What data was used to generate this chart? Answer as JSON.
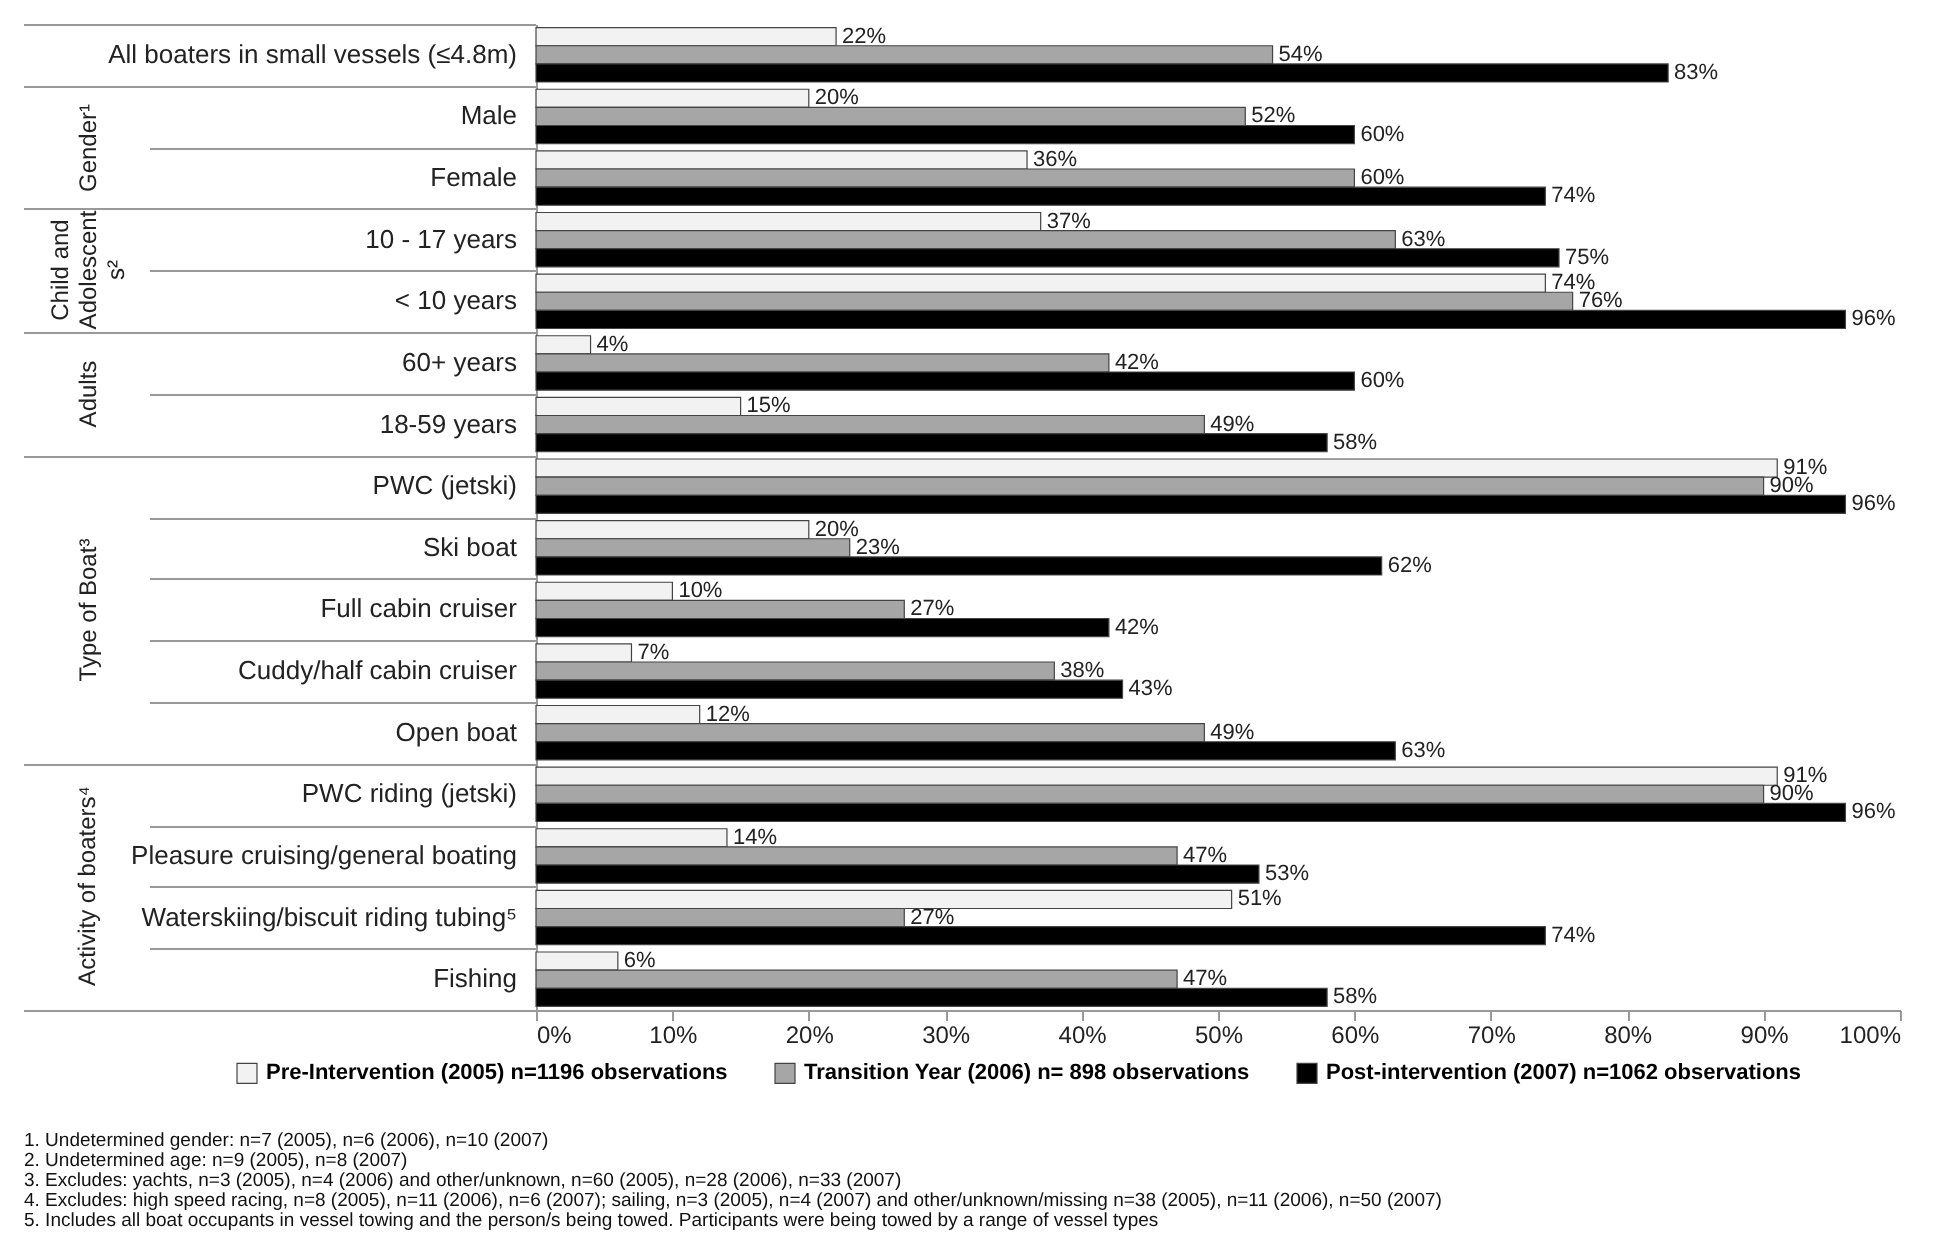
{
  "chart_data": {
    "type": "bar",
    "orientation": "horizontal",
    "categories": [
      "All boaters in small vessels (≤4.8m)",
      "Male",
      "Female",
      "10 - 17 years",
      "< 10 years",
      "60+ years",
      "18-59 years",
      "PWC (jetski)",
      "Ski boat",
      "Full cabin cruiser",
      "Cuddy/half cabin cruiser",
      "Open boat",
      "PWC riding (jetski)",
      "Pleasure cruising/general boating",
      "Waterskiing/biscuit riding tubing⁵",
      "Fishing"
    ],
    "series": [
      {
        "name": "Pre-Intervention (2005) n=1196 observations",
        "color": "#f2f2f2",
        "values": [
          22,
          20,
          36,
          37,
          74,
          4,
          15,
          91,
          20,
          10,
          7,
          12,
          91,
          14,
          51,
          6
        ],
        "value_labels": [
          "22%",
          "20%",
          "36%",
          "37%",
          "74%",
          "4%",
          "15%",
          "91%",
          "20%",
          "10%",
          "7%",
          "12%",
          "91%",
          "14%",
          "51%",
          "6%"
        ]
      },
      {
        "name": "Transition Year (2006) n= 898 observations",
        "color": "#a6a6a6",
        "values": [
          54,
          52,
          60,
          63,
          76,
          42,
          49,
          90,
          23,
          27,
          38,
          49,
          90,
          47,
          27,
          47
        ],
        "value_labels": [
          "54%",
          "52%",
          "60%",
          "63%",
          "76%",
          "42%",
          "49%",
          "90%",
          "23%",
          "27%",
          "38%",
          "49%",
          "90%",
          "47%",
          "27%",
          "47%"
        ]
      },
      {
        "name": "Post-intervention (2007) n=1062 observations",
        "color": "#000000",
        "values": [
          83,
          60,
          74,
          75,
          96,
          60,
          58,
          96,
          62,
          42,
          43,
          63,
          96,
          53,
          74,
          58
        ],
        "value_labels": [
          "83%",
          "60%",
          "74%",
          "75%",
          "96%",
          "60%",
          "58%",
          "96%",
          "62%",
          "42%",
          "43%",
          "63%",
          "96%",
          "53%",
          "74%",
          "58%"
        ]
      }
    ],
    "xlim": [
      0,
      100
    ],
    "xticks": [
      {
        "value": 0,
        "label": "0%"
      },
      {
        "value": 10,
        "label": "10%"
      },
      {
        "value": 20,
        "label": "20%"
      },
      {
        "value": 30,
        "label": "30%"
      },
      {
        "value": 40,
        "label": "40%"
      },
      {
        "value": 50,
        "label": "50%"
      },
      {
        "value": 60,
        "label": "60%"
      },
      {
        "value": 70,
        "label": "70%"
      },
      {
        "value": 80,
        "label": "80%"
      },
      {
        "value": 90,
        "label": "90%"
      },
      {
        "value": 100,
        "label": "100%"
      }
    ],
    "legend": "bottom",
    "annotations": [
      "Gender¹",
      "Child and Adolescent s²",
      "Adults",
      "Type of Boat³",
      "Activity of boaters⁴",
      "1. Undetermined gender: n=7 (2005), n=6 (2006), n=10 (2007)",
      "2. Undetermined age: n=9 (2005), n=8 (2007)",
      "3. Excludes: yachts, n=3 (2005), n=4 (2006) and other/unknown, n=60 (2005), n=28 (2006), n=33 (2007)",
      "4. Excludes: high speed racing, n=8 (2005), n=11 (2006), n=6 (2007); sailing, n=3 (2005), n=4 (2007) and other/unknown/missing n=38 (2005), n=11 (2006), n=50 (2007)",
      "5. Includes all boat occupants in vessel towing and the person/s being towed. Participants were being towed by a range of vessel types"
    ]
  }
}
